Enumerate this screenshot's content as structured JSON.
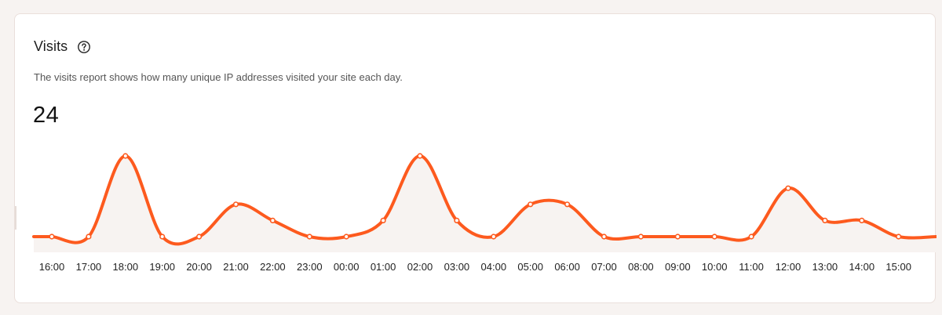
{
  "card": {
    "title": "Visits",
    "description": "The visits report shows how many unique IP addresses visited your site each day.",
    "total": "24",
    "help_icon": "question-circle-icon"
  },
  "colors": {
    "line": "#fd5a1e",
    "area": "#f7f3f1",
    "marker_stroke": "#fd5a1e",
    "marker_fill": "#ffffff"
  },
  "chart_data": {
    "type": "area",
    "title": "Visits",
    "x_labels": [
      "16:00",
      "17:00",
      "18:00",
      "19:00",
      "20:00",
      "21:00",
      "22:00",
      "23:00",
      "00:00",
      "01:00",
      "02:00",
      "03:00",
      "04:00",
      "05:00",
      "06:00",
      "07:00",
      "08:00",
      "09:00",
      "10:00",
      "11:00",
      "12:00",
      "13:00",
      "14:00",
      "15:00"
    ],
    "values": [
      0,
      0,
      5,
      0,
      0,
      2,
      1,
      0,
      0,
      1,
      5,
      1,
      0,
      2,
      2,
      0,
      0,
      0,
      0,
      0,
      3,
      1,
      1,
      0
    ],
    "ylim": [
      0,
      5
    ],
    "grid": false,
    "legend": "none",
    "markers": true
  }
}
